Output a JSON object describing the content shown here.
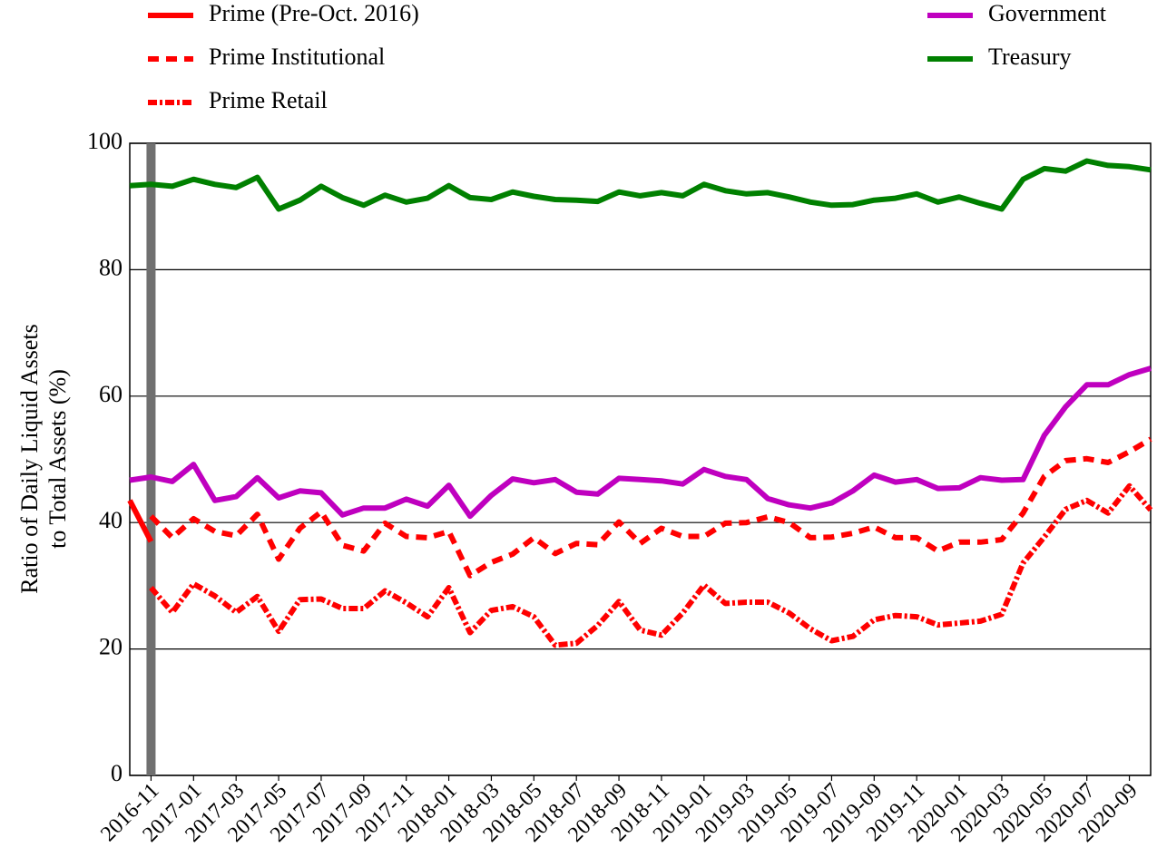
{
  "chart_data": {
    "type": "line",
    "y_label": [
      "Ratio of Daily Liquid Assets",
      "to Total Assets (%)"
    ],
    "x": [
      "2016-10",
      "2016-11",
      "2016-12",
      "2017-01",
      "2017-02",
      "2017-03",
      "2017-04",
      "2017-05",
      "2017-06",
      "2017-07",
      "2017-08",
      "2017-09",
      "2017-10",
      "2017-11",
      "2017-12",
      "2018-01",
      "2018-02",
      "2018-03",
      "2018-04",
      "2018-05",
      "2018-06",
      "2018-07",
      "2018-08",
      "2018-09",
      "2018-10",
      "2018-11",
      "2018-12",
      "2019-01",
      "2019-02",
      "2019-03",
      "2019-04",
      "2019-05",
      "2019-06",
      "2019-07",
      "2019-08",
      "2019-09",
      "2019-10",
      "2019-11",
      "2019-12",
      "2020-01",
      "2020-02",
      "2020-03",
      "2020-04",
      "2020-05",
      "2020-06",
      "2020-07",
      "2020-08",
      "2020-09",
      "2020-10"
    ],
    "xticks": [
      "2016-11",
      "2017-01",
      "2017-03",
      "2017-05",
      "2017-07",
      "2017-09",
      "2017-11",
      "2018-01",
      "2018-03",
      "2018-05",
      "2018-07",
      "2018-09",
      "2018-11",
      "2019-01",
      "2019-03",
      "2019-05",
      "2019-07",
      "2019-09",
      "2019-11",
      "2020-01",
      "2020-03",
      "2020-05",
      "2020-07",
      "2020-09"
    ],
    "ylim": [
      0,
      100
    ],
    "yticks": [
      0,
      20,
      40,
      60,
      80,
      100
    ],
    "grid": true,
    "series": [
      {
        "name": "Prime (Pre-Oct. 2016)",
        "color": "#ff0000",
        "style": "solid",
        "values": [
          43.5,
          37.0,
          null,
          null,
          null,
          null,
          null,
          null,
          null,
          null,
          null,
          null,
          null,
          null,
          null,
          null,
          null,
          null,
          null,
          null,
          null,
          null,
          null,
          null,
          null,
          null,
          null,
          null,
          null,
          null,
          null,
          null,
          null,
          null,
          null,
          null,
          null,
          null,
          null,
          null,
          null,
          null,
          null,
          null,
          null,
          null,
          null,
          null,
          null
        ]
      },
      {
        "name": "Prime Institutional",
        "color": "#ff0000",
        "style": "dashed",
        "values": [
          null,
          41.0,
          37.6,
          40.6,
          38.6,
          37.9,
          41.3,
          34.2,
          39.1,
          41.7,
          36.4,
          35.5,
          39.9,
          37.8,
          37.6,
          38.6,
          31.6,
          33.7,
          35.0,
          37.6,
          35.1,
          36.7,
          36.5,
          40.1,
          36.7,
          39.1,
          37.8,
          37.8,
          39.9,
          40.0,
          40.9,
          40.0,
          37.6,
          37.7,
          38.3,
          39.3,
          37.6,
          37.6,
          35.5,
          36.9,
          36.9,
          37.3,
          41.5,
          47.3,
          49.8,
          50.1,
          49.5,
          51.2,
          53.2
        ]
      },
      {
        "name": "Prime Retail",
        "color": "#ff0000",
        "style": "dashdot",
        "values": [
          null,
          29.7,
          25.8,
          30.3,
          28.4,
          25.8,
          28.3,
          22.8,
          27.8,
          27.9,
          26.4,
          26.4,
          29.2,
          27.3,
          25.1,
          29.7,
          22.6,
          26.1,
          26.7,
          25.1,
          20.6,
          20.9,
          23.7,
          27.5,
          23.0,
          22.2,
          25.7,
          30.1,
          27.2,
          27.4,
          27.4,
          25.7,
          23.2,
          21.3,
          22.0,
          24.6,
          25.3,
          25.1,
          23.8,
          24.1,
          24.4,
          25.5,
          33.6,
          37.7,
          42.1,
          43.5,
          41.5,
          45.8,
          42.0
        ]
      },
      {
        "name": "Government",
        "color": "#bf00bf",
        "style": "solid",
        "values": [
          46.7,
          47.2,
          46.5,
          49.2,
          43.5,
          44.1,
          47.1,
          43.9,
          45.0,
          44.7,
          41.2,
          42.3,
          42.3,
          43.7,
          42.6,
          45.9,
          41.0,
          44.3,
          46.9,
          46.3,
          46.8,
          44.8,
          44.5,
          47.0,
          46.8,
          46.6,
          46.1,
          48.4,
          47.3,
          46.8,
          43.8,
          42.8,
          42.3,
          43.1,
          45.0,
          47.5,
          46.4,
          46.8,
          45.4,
          45.5,
          47.1,
          46.7,
          46.8,
          53.8,
          58.3,
          61.8,
          61.8,
          63.4,
          64.4
        ]
      },
      {
        "name": "Treasury",
        "color": "#008000",
        "style": "solid",
        "values": [
          93.3,
          93.5,
          93.2,
          94.3,
          93.5,
          93.0,
          94.6,
          89.6,
          91.0,
          93.2,
          91.4,
          90.2,
          91.8,
          90.7,
          91.3,
          93.3,
          91.4,
          91.1,
          92.3,
          91.6,
          91.1,
          91.0,
          90.8,
          92.3,
          91.7,
          92.2,
          91.7,
          93.5,
          92.5,
          92.0,
          92.2,
          91.5,
          90.7,
          90.2,
          90.3,
          91.0,
          91.3,
          92.0,
          90.7,
          91.5,
          90.5,
          89.6,
          94.3,
          96.0,
          95.6,
          97.2,
          96.5,
          96.3,
          95.8
        ]
      }
    ]
  }
}
